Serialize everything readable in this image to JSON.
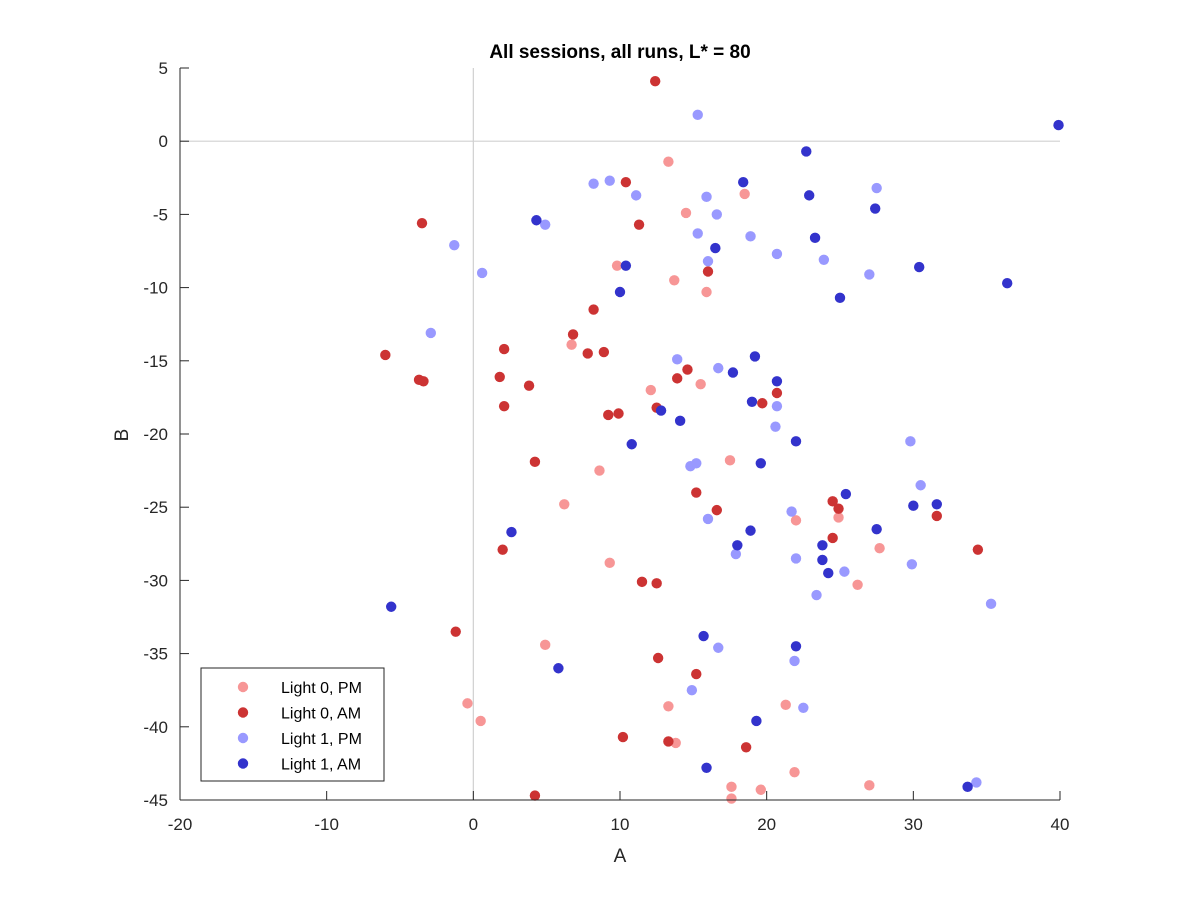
{
  "chart_data": {
    "type": "scatter",
    "title": "All sessions, all runs, L* = 80",
    "xlabel": "A",
    "ylabel": "B",
    "xlim": [
      -20,
      40
    ],
    "ylim": [
      -45,
      5
    ],
    "xticks": [
      -20,
      -10,
      0,
      10,
      20,
      30,
      40
    ],
    "yticks": [
      5,
      0,
      -5,
      -10,
      -15,
      -20,
      -25,
      -30,
      -35,
      -40,
      -45
    ],
    "zero_lines": true,
    "grid": false,
    "legend_location": "bottom-left",
    "series": [
      {
        "name": "Light 0, PM",
        "color": "#f79696",
        "points": [
          [
            13.3,
            -1.4
          ],
          [
            14.5,
            -4.9
          ],
          [
            18.5,
            -3.6
          ],
          [
            9.8,
            -8.5
          ],
          [
            13.7,
            -9.5
          ],
          [
            15.9,
            -10.3
          ],
          [
            6.7,
            -13.9
          ],
          [
            12.1,
            -17.0
          ],
          [
            15.5,
            -16.6
          ],
          [
            8.6,
            -22.5
          ],
          [
            17.5,
            -21.8
          ],
          [
            6.2,
            -24.8
          ],
          [
            22.0,
            -25.9
          ],
          [
            24.9,
            -25.7
          ],
          [
            27.7,
            -27.8
          ],
          [
            9.3,
            -28.8
          ],
          [
            26.2,
            -30.3
          ],
          [
            4.9,
            -34.4
          ],
          [
            -0.4,
            -38.4
          ],
          [
            0.5,
            -39.6
          ],
          [
            13.3,
            -38.6
          ],
          [
            21.3,
            -38.5
          ],
          [
            13.8,
            -41.1
          ],
          [
            17.6,
            -44.1
          ],
          [
            17.6,
            -44.9
          ],
          [
            19.6,
            -44.3
          ],
          [
            21.9,
            -43.1
          ],
          [
            27.0,
            -44.0
          ]
        ]
      },
      {
        "name": "Light 0, AM",
        "color": "#cc3333",
        "points": [
          [
            12.4,
            4.1
          ],
          [
            10.4,
            -2.8
          ],
          [
            11.3,
            -5.7
          ],
          [
            -3.5,
            -5.6
          ],
          [
            16.0,
            -8.9
          ],
          [
            8.2,
            -11.5
          ],
          [
            -6.0,
            -14.6
          ],
          [
            -3.7,
            -16.3
          ],
          [
            -3.4,
            -16.4
          ],
          [
            2.1,
            -14.2
          ],
          [
            1.8,
            -16.1
          ],
          [
            3.8,
            -16.7
          ],
          [
            6.8,
            -13.2
          ],
          [
            7.8,
            -14.5
          ],
          [
            8.9,
            -14.4
          ],
          [
            13.9,
            -16.2
          ],
          [
            14.6,
            -15.6
          ],
          [
            2.1,
            -18.1
          ],
          [
            9.2,
            -18.7
          ],
          [
            9.9,
            -18.6
          ],
          [
            12.5,
            -18.2
          ],
          [
            19.7,
            -17.9
          ],
          [
            20.7,
            -17.2
          ],
          [
            4.2,
            -21.9
          ],
          [
            15.2,
            -24.0
          ],
          [
            16.6,
            -25.2
          ],
          [
            24.5,
            -24.6
          ],
          [
            24.9,
            -25.1
          ],
          [
            31.6,
            -25.6
          ],
          [
            24.5,
            -27.1
          ],
          [
            2.0,
            -27.9
          ],
          [
            34.4,
            -27.9
          ],
          [
            11.5,
            -30.1
          ],
          [
            12.5,
            -30.2
          ],
          [
            -1.2,
            -33.5
          ],
          [
            12.6,
            -35.3
          ],
          [
            15.2,
            -36.4
          ],
          [
            10.2,
            -40.7
          ],
          [
            13.3,
            -41.0
          ],
          [
            18.6,
            -41.4
          ],
          [
            4.2,
            -44.7
          ]
        ]
      },
      {
        "name": "Light 1, PM",
        "color": "#9999ff",
        "points": [
          [
            15.3,
            1.8
          ],
          [
            8.2,
            -2.9
          ],
          [
            9.3,
            -2.7
          ],
          [
            11.1,
            -3.7
          ],
          [
            15.9,
            -3.8
          ],
          [
            27.5,
            -3.2
          ],
          [
            16.6,
            -5.0
          ],
          [
            4.9,
            -5.7
          ],
          [
            15.3,
            -6.3
          ],
          [
            18.9,
            -6.5
          ],
          [
            -1.3,
            -7.1
          ],
          [
            0.6,
            -9.0
          ],
          [
            16.0,
            -8.2
          ],
          [
            20.7,
            -7.7
          ],
          [
            23.9,
            -8.1
          ],
          [
            27.0,
            -9.1
          ],
          [
            -2.9,
            -13.1
          ],
          [
            13.9,
            -14.9
          ],
          [
            16.7,
            -15.5
          ],
          [
            20.7,
            -18.1
          ],
          [
            20.6,
            -19.5
          ],
          [
            14.8,
            -22.2
          ],
          [
            15.2,
            -22.0
          ],
          [
            29.8,
            -20.5
          ],
          [
            30.5,
            -23.5
          ],
          [
            21.7,
            -25.3
          ],
          [
            16.0,
            -25.8
          ],
          [
            17.9,
            -28.2
          ],
          [
            22.0,
            -28.5
          ],
          [
            25.3,
            -29.4
          ],
          [
            29.9,
            -28.9
          ],
          [
            23.4,
            -31.0
          ],
          [
            35.3,
            -31.6
          ],
          [
            16.7,
            -34.6
          ],
          [
            21.9,
            -35.5
          ],
          [
            14.9,
            -37.5
          ],
          [
            22.5,
            -38.7
          ],
          [
            34.3,
            -43.8
          ]
        ]
      },
      {
        "name": "Light 1, AM",
        "color": "#3333cc",
        "points": [
          [
            39.9,
            1.1
          ],
          [
            22.7,
            -0.7
          ],
          [
            18.4,
            -2.8
          ],
          [
            22.9,
            -3.7
          ],
          [
            27.4,
            -4.6
          ],
          [
            4.3,
            -5.4
          ],
          [
            23.3,
            -6.6
          ],
          [
            16.5,
            -7.3
          ],
          [
            10.4,
            -8.5
          ],
          [
            30.4,
            -8.6
          ],
          [
            36.4,
            -9.7
          ],
          [
            10.0,
            -10.3
          ],
          [
            25.0,
            -10.7
          ],
          [
            19.2,
            -14.7
          ],
          [
            17.7,
            -15.8
          ],
          [
            20.7,
            -16.4
          ],
          [
            19.0,
            -17.8
          ],
          [
            12.8,
            -18.4
          ],
          [
            14.1,
            -19.1
          ],
          [
            10.8,
            -20.7
          ],
          [
            22.0,
            -20.5
          ],
          [
            19.6,
            -22.0
          ],
          [
            25.4,
            -24.1
          ],
          [
            2.6,
            -26.7
          ],
          [
            18.9,
            -26.6
          ],
          [
            27.5,
            -26.5
          ],
          [
            30.0,
            -24.9
          ],
          [
            31.6,
            -24.8
          ],
          [
            18.0,
            -27.6
          ],
          [
            23.8,
            -27.6
          ],
          [
            23.8,
            -28.6
          ],
          [
            24.2,
            -29.5
          ],
          [
            -5.6,
            -31.8
          ],
          [
            15.7,
            -33.8
          ],
          [
            22.0,
            -34.5
          ],
          [
            5.8,
            -36.0
          ],
          [
            19.3,
            -39.6
          ],
          [
            15.9,
            -42.8
          ],
          [
            33.7,
            -44.1
          ]
        ]
      }
    ]
  }
}
